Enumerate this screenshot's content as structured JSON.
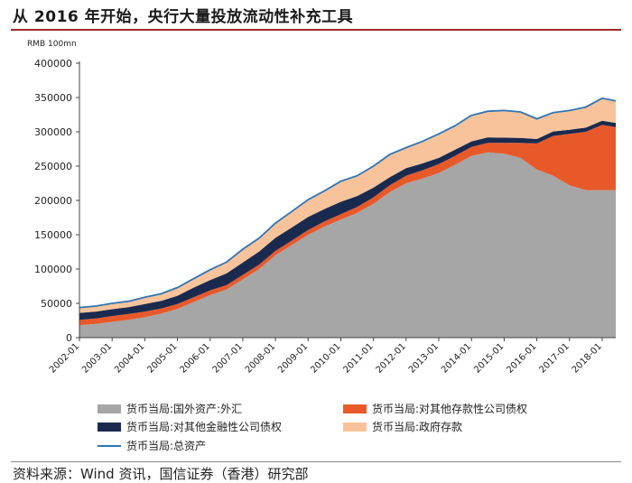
{
  "title": "从 2016 年开始，央行大量投放流动性补充工具",
  "source": "资料来源：Wind 资讯，国信证券（香港）研究部",
  "chart_data": {
    "type": "area",
    "unit_label": "RMB 100mn",
    "ylim": [
      0,
      400000
    ],
    "yticks": [
      0,
      50000,
      100000,
      150000,
      200000,
      250000,
      300000,
      350000,
      400000
    ],
    "xticks": [
      "2002-01",
      "2003-01",
      "2004-01",
      "2005-01",
      "2006-01",
      "2007-01",
      "2008-01",
      "2009-01",
      "2010-01",
      "2011-01",
      "2012-01",
      "2013-01",
      "2014-01",
      "2015-01",
      "2016-01",
      "2017-01",
      "2018-01"
    ],
    "xlim": [
      "2002-01",
      "2018-06"
    ],
    "stacked": true,
    "x": [
      "2002-01",
      "2002-07",
      "2003-01",
      "2003-07",
      "2004-01",
      "2004-07",
      "2005-01",
      "2005-07",
      "2006-01",
      "2006-07",
      "2007-01",
      "2007-07",
      "2008-01",
      "2008-07",
      "2009-01",
      "2009-07",
      "2010-01",
      "2010-07",
      "2011-01",
      "2011-07",
      "2012-01",
      "2012-07",
      "2013-01",
      "2013-07",
      "2014-01",
      "2014-07",
      "2015-01",
      "2015-07",
      "2016-01",
      "2016-07",
      "2017-01",
      "2017-07",
      "2018-01",
      "2018-06"
    ],
    "series": [
      {
        "name": "货币当局:国外资产:外汇",
        "color": "#a6a6a6",
        "values": [
          18000,
          20000,
          23000,
          26000,
          30000,
          35000,
          42000,
          52000,
          62000,
          70000,
          85000,
          100000,
          120000,
          135000,
          150000,
          162000,
          172000,
          182000,
          195000,
          212000,
          225000,
          232000,
          240000,
          252000,
          265000,
          270000,
          268000,
          262000,
          245000,
          236000,
          222000,
          215000,
          215000,
          215000
        ]
      },
      {
        "name": "货币当局:对其他存款性公司债权",
        "color": "#e8592a",
        "values": [
          8000,
          8000,
          8500,
          8500,
          8000,
          7500,
          7000,
          7000,
          7000,
          6500,
          6500,
          6500,
          6500,
          6500,
          7000,
          7500,
          8000,
          8500,
          9500,
          10000,
          11000,
          12000,
          13000,
          13000,
          13000,
          14000,
          16000,
          22000,
          38000,
          58000,
          75000,
          85000,
          95000,
          92000
        ]
      },
      {
        "name": "货币当局:对其他金融性公司债权",
        "color": "#1a2a4f",
        "values": [
          10000,
          10000,
          10000,
          10000,
          11000,
          11000,
          12000,
          14000,
          15000,
          17000,
          18000,
          19000,
          19000,
          19000,
          19000,
          18000,
          18000,
          16000,
          14000,
          12000,
          11000,
          10000,
          9000,
          9000,
          8000,
          8000,
          7500,
          7000,
          6500,
          6500,
          6000,
          6000,
          6000,
          6000
        ]
      },
      {
        "name": "货币当局:政府存款",
        "color": "#f8c39b",
        "values": [
          8000,
          8000,
          9000,
          9000,
          10000,
          11000,
          12000,
          13000,
          15000,
          17000,
          20000,
          20000,
          22000,
          24000,
          25000,
          27000,
          30000,
          30000,
          32000,
          33000,
          30000,
          32000,
          35000,
          35000,
          38000,
          38000,
          40000,
          38000,
          30000,
          28000,
          28000,
          30000,
          33000,
          32000
        ]
      }
    ],
    "line": {
      "name": "货币当局:总资产",
      "color": "#2e75b6",
      "values": [
        44000,
        46000,
        50000,
        53000,
        59000,
        64000,
        73000,
        86000,
        99000,
        110000,
        129000,
        145000,
        167000,
        184000,
        201000,
        214000,
        228000,
        236000,
        250000,
        267000,
        277000,
        286000,
        297000,
        309000,
        324000,
        330000,
        331000,
        329000,
        319000,
        328000,
        331000,
        336000,
        349000,
        345000
      ]
    }
  }
}
